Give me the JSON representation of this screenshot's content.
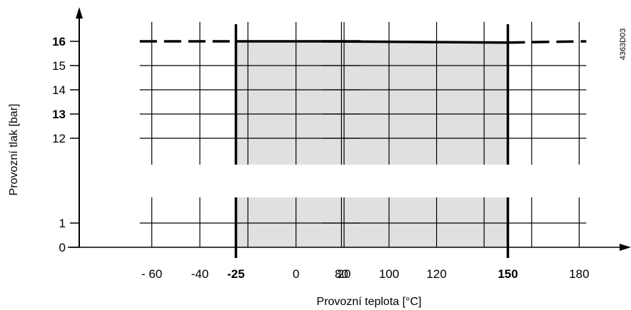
{
  "chart_data": {
    "type": "area",
    "code": "4363D03",
    "xlabel": "Provozní teplota [°C]",
    "ylabel": "Provozní tlak [bar]",
    "x_ticks": [
      {
        "value": -60,
        "label": "- 60",
        "bold": false
      },
      {
        "value": -40,
        "label": "-40",
        "bold": false
      },
      {
        "value": -25,
        "label": "-25",
        "bold": true
      },
      {
        "value": 0,
        "label": "0",
        "bold": false
      },
      {
        "value": 20,
        "label": "20",
        "bold": false
      },
      {
        "value": 80,
        "label": "80",
        "bold": false
      },
      {
        "value": 100,
        "label": "100",
        "bold": false
      },
      {
        "value": 120,
        "label": "120",
        "bold": false
      },
      {
        "value": 150,
        "label": "150",
        "bold": true
      },
      {
        "value": 180,
        "label": "180",
        "bold": false
      }
    ],
    "x_grid": [
      -60,
      -40,
      -25,
      -20,
      0,
      20,
      80,
      100,
      120,
      140,
      150,
      160,
      180
    ],
    "x_segments": [
      [
        -65,
        27
      ],
      [
        72,
        183
      ]
    ],
    "y_ticks_upper": [
      {
        "value": 16,
        "label": "16",
        "bold": true
      },
      {
        "value": 15,
        "label": "15",
        "bold": false
      },
      {
        "value": 14,
        "label": "14",
        "bold": false
      },
      {
        "value": 13,
        "label": "13",
        "bold": true
      },
      {
        "value": 12,
        "label": "12",
        "bold": false
      }
    ],
    "y_ticks_lower": [
      {
        "value": 1,
        "label": "1",
        "bold": false
      },
      {
        "value": 0,
        "label": "0",
        "bold": false
      }
    ],
    "operating_range": {
      "temperature": [
        -25,
        150
      ],
      "pressure_max": 16
    },
    "limit_solid": [
      [
        -25,
        16
      ],
      [
        27,
        16
      ],
      [
        72,
        16
      ],
      [
        150,
        15.95
      ]
    ],
    "limit_dashed_left": [
      [
        -65,
        16
      ],
      [
        -25,
        16
      ]
    ],
    "limit_dashed_right": [
      [
        150,
        15.95
      ],
      [
        183,
        16
      ]
    ],
    "grid": true,
    "fill_color": "#e0e0e0",
    "line_color": "#000000"
  }
}
